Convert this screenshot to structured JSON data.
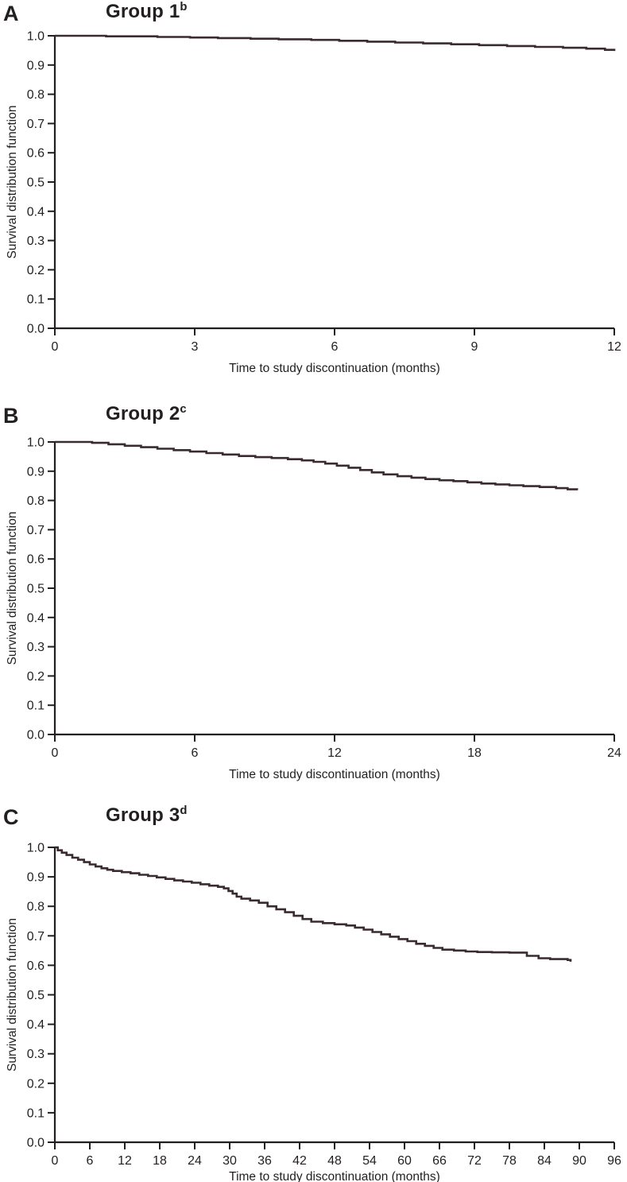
{
  "figure": {
    "background": "#ffffff",
    "text_color": "#231f20",
    "axis_color": "#231f20",
    "curve_color": "#3a2a32"
  },
  "chart_data": [
    {
      "type": "line",
      "subtype": "kaplan-meier-step",
      "panel_label": "A",
      "title": "Group 1",
      "title_sup": "b",
      "xlabel": "Time to study discontinuation (months)",
      "ylabel": "Survival distribution function",
      "xlim": [
        0,
        12
      ],
      "ylim": [
        0.0,
        1.0
      ],
      "x_ticks": [
        0,
        3,
        6,
        9,
        12
      ],
      "y_ticks": [
        "1.0",
        "0.9",
        "0.8",
        "0.7",
        "0.6",
        "0.5",
        "0.4",
        "0.3",
        "0.2",
        "0.1",
        "0.0"
      ],
      "grid": false,
      "legend": "none",
      "series": [
        {
          "name": "Group 1",
          "step_points": [
            [
              0,
              1.0
            ],
            [
              1.1,
              0.998
            ],
            [
              2.2,
              0.996
            ],
            [
              2.9,
              0.994
            ],
            [
              3.5,
              0.992
            ],
            [
              4.2,
              0.99
            ],
            [
              4.8,
              0.988
            ],
            [
              5.5,
              0.986
            ],
            [
              6.1,
              0.983
            ],
            [
              6.7,
              0.98
            ],
            [
              7.3,
              0.977
            ],
            [
              7.9,
              0.974
            ],
            [
              8.5,
              0.971
            ],
            [
              9.1,
              0.968
            ],
            [
              9.7,
              0.965
            ],
            [
              10.3,
              0.962
            ],
            [
              10.9,
              0.959
            ],
            [
              11.4,
              0.956
            ],
            [
              11.8,
              0.952
            ],
            [
              12.0,
              0.948
            ]
          ]
        }
      ]
    },
    {
      "type": "line",
      "subtype": "kaplan-meier-step",
      "panel_label": "B",
      "title": "Group 2",
      "title_sup": "c",
      "xlabel": "Time to study discontinuation (months)",
      "ylabel": "Survival distribution function",
      "xlim": [
        0,
        24
      ],
      "ylim": [
        0.0,
        1.0
      ],
      "x_ticks": [
        0,
        6,
        12,
        18,
        24
      ],
      "y_ticks": [
        "1.0",
        "0.9",
        "0.8",
        "0.7",
        "0.6",
        "0.5",
        "0.4",
        "0.3",
        "0.2",
        "0.1",
        "0.0"
      ],
      "grid": false,
      "legend": "none",
      "series": [
        {
          "name": "Group 2",
          "step_points": [
            [
              0,
              1.0
            ],
            [
              1.6,
              0.997
            ],
            [
              2.3,
              0.992
            ],
            [
              3.0,
              0.987
            ],
            [
              3.7,
              0.982
            ],
            [
              4.4,
              0.977
            ],
            [
              5.1,
              0.972
            ],
            [
              5.8,
              0.967
            ],
            [
              6.5,
              0.962
            ],
            [
              7.2,
              0.957
            ],
            [
              7.9,
              0.952
            ],
            [
              8.6,
              0.948
            ],
            [
              9.3,
              0.945
            ],
            [
              10.0,
              0.941
            ],
            [
              10.6,
              0.937
            ],
            [
              11.1,
              0.932
            ],
            [
              11.6,
              0.926
            ],
            [
              12.1,
              0.919
            ],
            [
              12.6,
              0.912
            ],
            [
              13.1,
              0.904
            ],
            [
              13.6,
              0.896
            ],
            [
              14.1,
              0.889
            ],
            [
              14.7,
              0.883
            ],
            [
              15.3,
              0.878
            ],
            [
              15.9,
              0.873
            ],
            [
              16.5,
              0.869
            ],
            [
              17.1,
              0.866
            ],
            [
              17.7,
              0.862
            ],
            [
              18.3,
              0.858
            ],
            [
              18.9,
              0.855
            ],
            [
              19.5,
              0.852
            ],
            [
              20.1,
              0.849
            ],
            [
              20.8,
              0.846
            ],
            [
              21.5,
              0.842
            ],
            [
              22.0,
              0.838
            ],
            [
              22.4,
              0.835
            ]
          ]
        }
      ]
    },
    {
      "type": "line",
      "subtype": "kaplan-meier-step",
      "panel_label": "C",
      "title": "Group 3",
      "title_sup": "d",
      "xlabel": "Time to study discontinuation (months)",
      "ylabel": "Survival distribution function",
      "xlim": [
        0,
        96
      ],
      "ylim": [
        0.0,
        1.0
      ],
      "x_ticks": [
        0,
        6,
        12,
        18,
        24,
        30,
        36,
        42,
        48,
        54,
        60,
        66,
        72,
        78,
        84,
        90,
        96
      ],
      "y_ticks": [
        "1.0",
        "0.9",
        "0.8",
        "0.7",
        "0.6",
        "0.5",
        "0.4",
        "0.3",
        "0.2",
        "0.1",
        "0.0"
      ],
      "grid": false,
      "legend": "none",
      "series": [
        {
          "name": "Group 3",
          "step_points": [
            [
              0,
              1.0
            ],
            [
              0.5,
              0.99
            ],
            [
              1.2,
              0.982
            ],
            [
              2.0,
              0.974
            ],
            [
              3.0,
              0.965
            ],
            [
              4.0,
              0.958
            ],
            [
              5.0,
              0.95
            ],
            [
              6.0,
              0.942
            ],
            [
              7.0,
              0.935
            ],
            [
              8.0,
              0.929
            ],
            [
              9.0,
              0.924
            ],
            [
              10.0,
              0.92
            ],
            [
              11.5,
              0.916
            ],
            [
              13.0,
              0.912
            ],
            [
              14.5,
              0.907
            ],
            [
              16.0,
              0.903
            ],
            [
              17.5,
              0.898
            ],
            [
              19.0,
              0.893
            ],
            [
              20.5,
              0.888
            ],
            [
              22.0,
              0.884
            ],
            [
              23.5,
              0.88
            ],
            [
              25.0,
              0.875
            ],
            [
              26.5,
              0.87
            ],
            [
              28.0,
              0.866
            ],
            [
              29.0,
              0.861
            ],
            [
              29.8,
              0.852
            ],
            [
              30.5,
              0.843
            ],
            [
              31.2,
              0.833
            ],
            [
              32.0,
              0.826
            ],
            [
              33.5,
              0.82
            ],
            [
              35.0,
              0.812
            ],
            [
              36.5,
              0.8
            ],
            [
              38.0,
              0.79
            ],
            [
              39.5,
              0.78
            ],
            [
              41.0,
              0.768
            ],
            [
              42.5,
              0.757
            ],
            [
              44.0,
              0.748
            ],
            [
              46.0,
              0.743
            ],
            [
              48.0,
              0.739
            ],
            [
              50.0,
              0.735
            ],
            [
              51.5,
              0.728
            ],
            [
              53.0,
              0.721
            ],
            [
              54.5,
              0.713
            ],
            [
              56.0,
              0.705
            ],
            [
              57.5,
              0.697
            ],
            [
              59.0,
              0.689
            ],
            [
              60.5,
              0.682
            ],
            [
              62.0,
              0.673
            ],
            [
              63.5,
              0.666
            ],
            [
              65.0,
              0.659
            ],
            [
              66.5,
              0.653
            ],
            [
              68.5,
              0.65
            ],
            [
              70.5,
              0.647
            ],
            [
              72.5,
              0.645
            ],
            [
              75.0,
              0.644
            ],
            [
              78.0,
              0.643
            ],
            [
              81.0,
              0.632
            ],
            [
              83.0,
              0.624
            ],
            [
              85.0,
              0.621
            ],
            [
              88.0,
              0.618
            ],
            [
              88.5,
              0.612
            ]
          ]
        }
      ]
    }
  ]
}
